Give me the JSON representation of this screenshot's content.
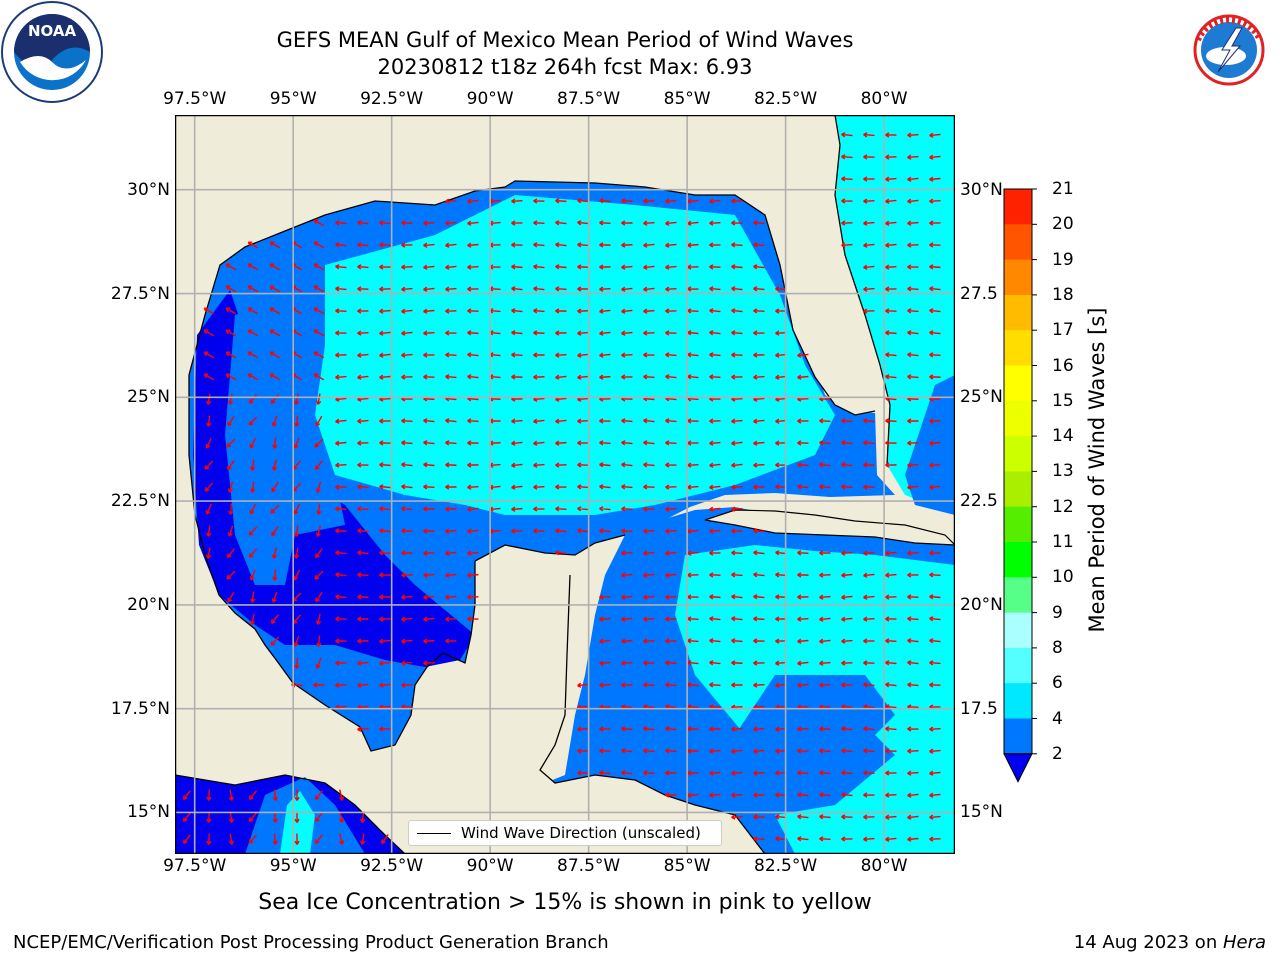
{
  "header": {
    "title_line1": "GEFS MEAN Gulf of Mexico Mean Period of Wind Waves",
    "title_line2": "20230812 t18z 264h fcst   Max: 6.93"
  },
  "map": {
    "lon_ticks": [
      "97.5°W",
      "95°W",
      "92.5°W",
      "90°W",
      "87.5°W",
      "85°W",
      "82.5°W",
      "80°W"
    ],
    "lon_values": [
      -97.5,
      -95,
      -92.5,
      -90,
      -87.5,
      -85,
      -82.5,
      -80
    ],
    "lat_ticks_left": [
      "30°N",
      "27.5°N",
      "25°N",
      "22.5°N",
      "20°N",
      "17.5°N",
      "15°N"
    ],
    "lat_ticks_right": [
      "30°N",
      "27.5",
      "25°N",
      "22.5",
      "20°N",
      "17.5",
      "15°N"
    ],
    "lat_values": [
      30,
      27.5,
      25,
      22.5,
      20,
      17.5,
      15
    ],
    "lon_range": [
      -98,
      -78.2
    ],
    "lat_range": [
      14,
      31.8
    ],
    "grid": true,
    "land_color": "#efedda",
    "coast_color": "#000000",
    "arrow_color": "#ff0000"
  },
  "legend": {
    "label": "Wind Wave Direction (unscaled)",
    "placement": "lower-center"
  },
  "colorbar": {
    "label": "Mean Period of Wind Waves [s]",
    "ticks": [
      "21",
      "20",
      "19",
      "18",
      "17",
      "16",
      "15",
      "14",
      "13",
      "12",
      "11",
      "10",
      "9",
      "8",
      "6",
      "4",
      "2"
    ],
    "levels": [
      2,
      4,
      6,
      8,
      9,
      10,
      11,
      12,
      13,
      14,
      15,
      16,
      17,
      18,
      19,
      20,
      21
    ],
    "colors": [
      "#0077ff",
      "#00e8ff",
      "#55ffff",
      "#aaffff",
      "#55ff88",
      "#00ff00",
      "#55ee00",
      "#aaee00",
      "#ccff00",
      "#eeff00",
      "#ffff00",
      "#ffdd00",
      "#ffbb00",
      "#ff8800",
      "#ff5500",
      "#ff2200",
      "#ff0000"
    ],
    "under_color": "#0000ee",
    "field_colors": {
      "lt2": "#0000ee",
      "2to4": "#0077ff",
      "4to6": "#00ffff"
    }
  },
  "caption": "Sea Ice Concentration > 15% is shown in pink to yellow",
  "footer": {
    "left": "NCEP/EMC/Verification Post Processing Product Generation Branch",
    "right_prefix": "14 Aug 2023 on ",
    "right_host": "Hera"
  },
  "logos": {
    "noaa": {
      "text": "NOAA",
      "ring_text": "NATIONAL OCEANIC AND ATMOSPHERIC ADMINISTRATION · U.S. DEPARTMENT OF COMMERCE"
    },
    "nws": {
      "ring_text": "NATIONAL WEATHER SERVICE"
    }
  }
}
